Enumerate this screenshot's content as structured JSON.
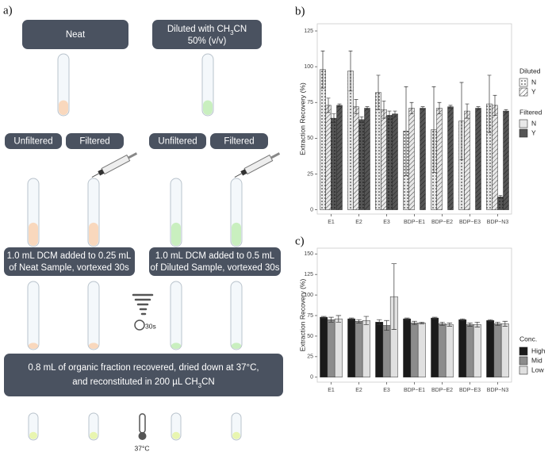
{
  "diagram": {
    "panel_label": "a)",
    "neat": "Neat",
    "diluted": {
      "line1": [
        "Diluted with CH",
        "3",
        "CN"
      ],
      "line2": "50% (v/v)"
    },
    "filter_labels": [
      "Unfiltered",
      "Filtered",
      "Unfiltered",
      "Filtered"
    ],
    "neat_step": [
      "1.0 mL DCM added to 0.25 mL",
      "of Neat Sample, vortexed 30s"
    ],
    "diluted_step": [
      "1.0 mL DCM added to 0.5 mL",
      "of Diluted Sample, vortexed 30s"
    ],
    "vortex_time": "30s",
    "final_step": {
      "line1": "0.8 mL of organic fraction recovered, dried down at 37°C,",
      "line2": [
        "and reconstituted in 200 µL CH",
        "3",
        "CN"
      ]
    },
    "temperature": "37°C"
  },
  "chart_data": [
    {
      "type": "bar",
      "panel_label": "b)",
      "y_label": "Extraction Recovery (%)",
      "categories": [
        "E1",
        "E2",
        "E3",
        "BDP−E1",
        "BDP−E2",
        "BDP−E3",
        "BDP−N3"
      ],
      "ylim": [
        -3,
        130
      ],
      "yticks": [
        0,
        25,
        50,
        75,
        100,
        125
      ],
      "series": [
        {
          "color": "#e8e8e8",
          "pattern": "dots",
          "values": [
            98,
            97,
            82,
            55,
            56,
            62,
            74
          ],
          "errors": [
            13,
            14,
            12,
            31,
            30,
            27,
            20
          ]
        },
        {
          "color": "#e8e8e8",
          "pattern": "hatch",
          "values": [
            73,
            72,
            70,
            71,
            71,
            69,
            73
          ],
          "errors": [
            5,
            5,
            6,
            4,
            4,
            5,
            7
          ]
        },
        {
          "color": "#555555",
          "pattern": "dots",
          "values": [
            64,
            63,
            66,
            null,
            null,
            null,
            9
          ],
          "errors": [
            3,
            2,
            3,
            null,
            null,
            null,
            1
          ]
        },
        {
          "color": "#555555",
          "pattern": "hatch",
          "values": [
            73,
            71,
            67,
            71,
            72,
            71,
            69
          ],
          "errors": [
            1,
            1,
            2,
            1,
            1,
            1,
            1
          ]
        }
      ],
      "legends": [
        {
          "title": "Diluted",
          "items": [
            {
              "label": "N",
              "pattern": "dots"
            },
            {
              "label": "Y",
              "pattern": "hatch"
            }
          ]
        },
        {
          "title": "Filtered",
          "items": [
            {
              "label": "N",
              "color": "#e8e8e8"
            },
            {
              "label": "Y",
              "color": "#555555"
            }
          ]
        }
      ]
    },
    {
      "type": "bar",
      "panel_label": "c)",
      "y_label": "Extraction Recovery (%)",
      "categories": [
        "E1",
        "E2",
        "E3",
        "BDP−E1",
        "BDP−E2",
        "BDP−E3",
        "BDP−N3"
      ],
      "ylim": [
        -6,
        157
      ],
      "yticks": [
        0,
        25,
        50,
        75,
        100,
        125,
        150
      ],
      "series": [
        {
          "name": "High",
          "color": "#1a1a1a",
          "values": [
            73,
            71,
            67,
            71,
            72,
            70,
            69
          ],
          "errors": [
            1,
            1,
            3,
            1,
            1,
            1,
            1
          ]
        },
        {
          "name": "Mid",
          "color": "#8c8c8c",
          "values": [
            70,
            68,
            63,
            66,
            65,
            64,
            65
          ],
          "errors": [
            3,
            2,
            6,
            2,
            2,
            2,
            2
          ]
        },
        {
          "name": "Low",
          "color": "#e0e0e0",
          "values": [
            71,
            69,
            98,
            66,
            64,
            64,
            65
          ],
          "errors": [
            4,
            5,
            40,
            1,
            2,
            3,
            3
          ]
        }
      ],
      "legend_title": "Conc."
    }
  ]
}
